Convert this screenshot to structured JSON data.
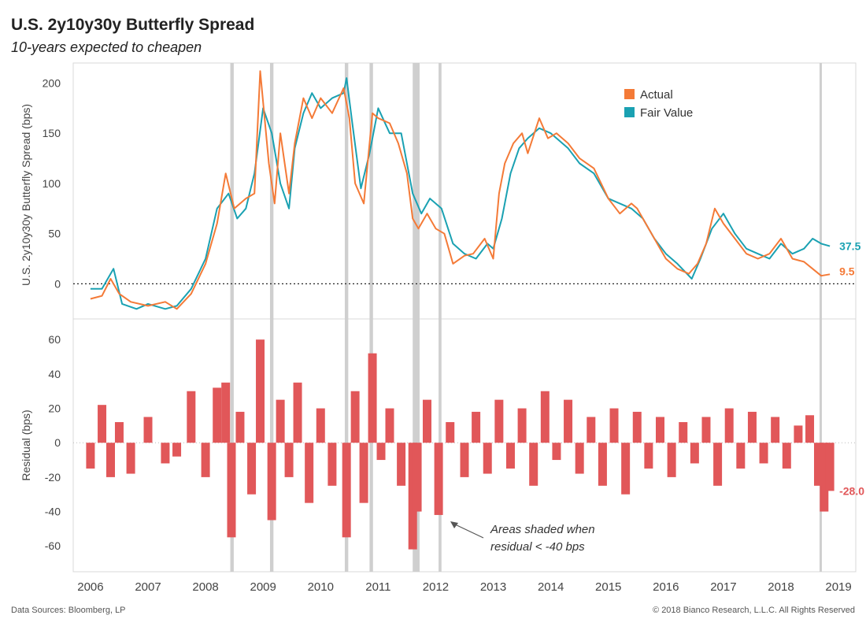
{
  "header": {
    "title": "U.S. 2y10y30y Butterfly Spread",
    "subtitle": "10-years expected to cheapen"
  },
  "footer": {
    "source": "Data Sources: Bloomberg, LP",
    "copyright": "© 2018 Bianco Research, L.L.C. All Rights Reserved"
  },
  "colors": {
    "actual": "#f47a37",
    "fair_value": "#1aa1b2",
    "residual": "#e15759",
    "shade": "#cfcfcf",
    "grid": "#d8d8d8"
  },
  "chart_data": [
    {
      "type": "line",
      "ylabel": "U.S. 2y10y30y Butterfly Spread (bps)",
      "ylim": [
        -35,
        220
      ],
      "yticks": [
        0,
        50,
        100,
        150,
        200
      ],
      "xlim": [
        2005.7,
        2019.3
      ],
      "xticks": [
        "2006",
        "2007",
        "2008",
        "2009",
        "2010",
        "2011",
        "2012",
        "2013",
        "2014",
        "2015",
        "2016",
        "2017",
        "2018",
        "2019"
      ],
      "legend": {
        "placement": "top-right",
        "entries": [
          "Actual",
          "Fair Value"
        ]
      },
      "zero_line": "dotted",
      "end_labels": {
        "fair_value": "37.5",
        "actual": "9.5"
      },
      "series": [
        {
          "name": "Actual",
          "points": [
            [
              2006.0,
              -15
            ],
            [
              2006.2,
              -12
            ],
            [
              2006.35,
              5
            ],
            [
              2006.5,
              -10
            ],
            [
              2006.7,
              -18
            ],
            [
              2007.0,
              -22
            ],
            [
              2007.3,
              -18
            ],
            [
              2007.5,
              -25
            ],
            [
              2007.75,
              -10
            ],
            [
              2008.0,
              20
            ],
            [
              2008.2,
              60
            ],
            [
              2008.35,
              110
            ],
            [
              2008.5,
              75
            ],
            [
              2008.7,
              85
            ],
            [
              2008.85,
              90
            ],
            [
              2008.95,
              212
            ],
            [
              2009.1,
              120
            ],
            [
              2009.2,
              80
            ],
            [
              2009.3,
              150
            ],
            [
              2009.45,
              90
            ],
            [
              2009.55,
              140
            ],
            [
              2009.7,
              185
            ],
            [
              2009.85,
              165
            ],
            [
              2010.0,
              185
            ],
            [
              2010.2,
              170
            ],
            [
              2010.4,
              195
            ],
            [
              2010.5,
              165
            ],
            [
              2010.6,
              100
            ],
            [
              2010.75,
              80
            ],
            [
              2010.9,
              170
            ],
            [
              2011.0,
              165
            ],
            [
              2011.2,
              160
            ],
            [
              2011.35,
              140
            ],
            [
              2011.5,
              110
            ],
            [
              2011.6,
              65
            ],
            [
              2011.7,
              55
            ],
            [
              2011.85,
              70
            ],
            [
              2012.0,
              55
            ],
            [
              2012.15,
              50
            ],
            [
              2012.3,
              20
            ],
            [
              2012.5,
              28
            ],
            [
              2012.65,
              30
            ],
            [
              2012.85,
              45
            ],
            [
              2013.0,
              25
            ],
            [
              2013.1,
              90
            ],
            [
              2013.2,
              120
            ],
            [
              2013.35,
              140
            ],
            [
              2013.5,
              150
            ],
            [
              2013.6,
              130
            ],
            [
              2013.8,
              165
            ],
            [
              2013.95,
              145
            ],
            [
              2014.1,
              150
            ],
            [
              2014.3,
              140
            ],
            [
              2014.5,
              125
            ],
            [
              2014.75,
              115
            ],
            [
              2015.0,
              85
            ],
            [
              2015.2,
              70
            ],
            [
              2015.4,
              80
            ],
            [
              2015.5,
              75
            ],
            [
              2015.7,
              55
            ],
            [
              2015.9,
              35
            ],
            [
              2016.0,
              25
            ],
            [
              2016.2,
              15
            ],
            [
              2016.4,
              10
            ],
            [
              2016.55,
              20
            ],
            [
              2016.7,
              40
            ],
            [
              2016.85,
              75
            ],
            [
              2017.0,
              60
            ],
            [
              2017.2,
              45
            ],
            [
              2017.4,
              30
            ],
            [
              2017.6,
              25
            ],
            [
              2017.8,
              30
            ],
            [
              2018.0,
              45
            ],
            [
              2018.2,
              25
            ],
            [
              2018.4,
              22
            ],
            [
              2018.55,
              15
            ],
            [
              2018.7,
              8
            ],
            [
              2018.85,
              9.5
            ]
          ]
        },
        {
          "name": "Fair Value",
          "points": [
            [
              2006.0,
              -5
            ],
            [
              2006.2,
              -5
            ],
            [
              2006.4,
              15
            ],
            [
              2006.55,
              -20
            ],
            [
              2006.8,
              -25
            ],
            [
              2007.0,
              -20
            ],
            [
              2007.3,
              -25
            ],
            [
              2007.5,
              -22
            ],
            [
              2007.75,
              -5
            ],
            [
              2008.0,
              25
            ],
            [
              2008.2,
              75
            ],
            [
              2008.4,
              90
            ],
            [
              2008.55,
              65
            ],
            [
              2008.7,
              75
            ],
            [
              2008.85,
              110
            ],
            [
              2009.0,
              175
            ],
            [
              2009.15,
              150
            ],
            [
              2009.3,
              100
            ],
            [
              2009.45,
              75
            ],
            [
              2009.55,
              135
            ],
            [
              2009.7,
              170
            ],
            [
              2009.85,
              190
            ],
            [
              2010.0,
              175
            ],
            [
              2010.2,
              185
            ],
            [
              2010.4,
              190
            ],
            [
              2010.45,
              205
            ],
            [
              2010.55,
              160
            ],
            [
              2010.7,
              95
            ],
            [
              2010.85,
              130
            ],
            [
              2011.0,
              175
            ],
            [
              2011.2,
              150
            ],
            [
              2011.4,
              150
            ],
            [
              2011.5,
              120
            ],
            [
              2011.6,
              90
            ],
            [
              2011.75,
              70
            ],
            [
              2011.9,
              85
            ],
            [
              2012.1,
              75
            ],
            [
              2012.3,
              40
            ],
            [
              2012.5,
              30
            ],
            [
              2012.7,
              25
            ],
            [
              2012.9,
              40
            ],
            [
              2013.0,
              35
            ],
            [
              2013.15,
              65
            ],
            [
              2013.3,
              110
            ],
            [
              2013.45,
              135
            ],
            [
              2013.6,
              145
            ],
            [
              2013.8,
              155
            ],
            [
              2014.0,
              150
            ],
            [
              2014.3,
              135
            ],
            [
              2014.5,
              120
            ],
            [
              2014.75,
              110
            ],
            [
              2015.0,
              85
            ],
            [
              2015.2,
              80
            ],
            [
              2015.4,
              75
            ],
            [
              2015.6,
              65
            ],
            [
              2015.8,
              45
            ],
            [
              2016.0,
              30
            ],
            [
              2016.2,
              20
            ],
            [
              2016.45,
              5
            ],
            [
              2016.6,
              25
            ],
            [
              2016.8,
              55
            ],
            [
              2017.0,
              70
            ],
            [
              2017.2,
              50
            ],
            [
              2017.4,
              35
            ],
            [
              2017.6,
              30
            ],
            [
              2017.8,
              25
            ],
            [
              2018.0,
              40
            ],
            [
              2018.2,
              30
            ],
            [
              2018.4,
              35
            ],
            [
              2018.55,
              45
            ],
            [
              2018.7,
              40
            ],
            [
              2018.85,
              37.5
            ]
          ]
        }
      ],
      "shaded_periods": [
        [
          2008.43,
          2008.49
        ],
        [
          2009.12,
          2009.18
        ],
        [
          2010.42,
          2010.48
        ],
        [
          2010.85,
          2010.91
        ],
        [
          2011.6,
          2011.72
        ],
        [
          2012.05,
          2012.1
        ],
        [
          2018.67,
          2018.71
        ]
      ]
    },
    {
      "type": "bar",
      "ylabel": "Residual (bps)",
      "ylim": [
        -75,
        72
      ],
      "yticks": [
        -60,
        -40,
        -20,
        0,
        20,
        40,
        60
      ],
      "zero_line": "dotted",
      "end_label": "-28.0",
      "annotation": {
        "lines": [
          "Areas shaded when",
          "residual < -40 bps"
        ]
      },
      "x": [
        2006.0,
        2006.2,
        2006.35,
        2006.5,
        2006.7,
        2007.0,
        2007.3,
        2007.5,
        2007.75,
        2008.0,
        2008.2,
        2008.35,
        2008.45,
        2008.6,
        2008.8,
        2008.95,
        2009.15,
        2009.3,
        2009.45,
        2009.6,
        2009.8,
        2010.0,
        2010.2,
        2010.45,
        2010.6,
        2010.75,
        2010.9,
        2011.05,
        2011.2,
        2011.4,
        2011.6,
        2011.68,
        2011.85,
        2012.05,
        2012.25,
        2012.5,
        2012.7,
        2012.9,
        2013.1,
        2013.3,
        2013.5,
        2013.7,
        2013.9,
        2014.1,
        2014.3,
        2014.5,
        2014.7,
        2014.9,
        2015.1,
        2015.3,
        2015.5,
        2015.7,
        2015.9,
        2016.1,
        2016.3,
        2016.5,
        2016.7,
        2016.9,
        2017.1,
        2017.3,
        2017.5,
        2017.7,
        2017.9,
        2018.1,
        2018.3,
        2018.5,
        2018.65,
        2018.75,
        2018.85
      ],
      "values": [
        -15,
        22,
        -20,
        12,
        -18,
        15,
        -12,
        -8,
        30,
        -20,
        32,
        35,
        -55,
        18,
        -30,
        60,
        -45,
        25,
        -20,
        35,
        -35,
        20,
        -25,
        -55,
        30,
        -35,
        52,
        -10,
        20,
        -25,
        -62,
        -40,
        25,
        -42,
        12,
        -20,
        18,
        -18,
        25,
        -15,
        20,
        -25,
        30,
        -10,
        25,
        -18,
        15,
        -25,
        20,
        -30,
        18,
        -15,
        15,
        -20,
        12,
        -12,
        15,
        -25,
        20,
        -15,
        18,
        -12,
        15,
        -15,
        10,
        16,
        -25,
        -40,
        -28.0
      ]
    }
  ]
}
